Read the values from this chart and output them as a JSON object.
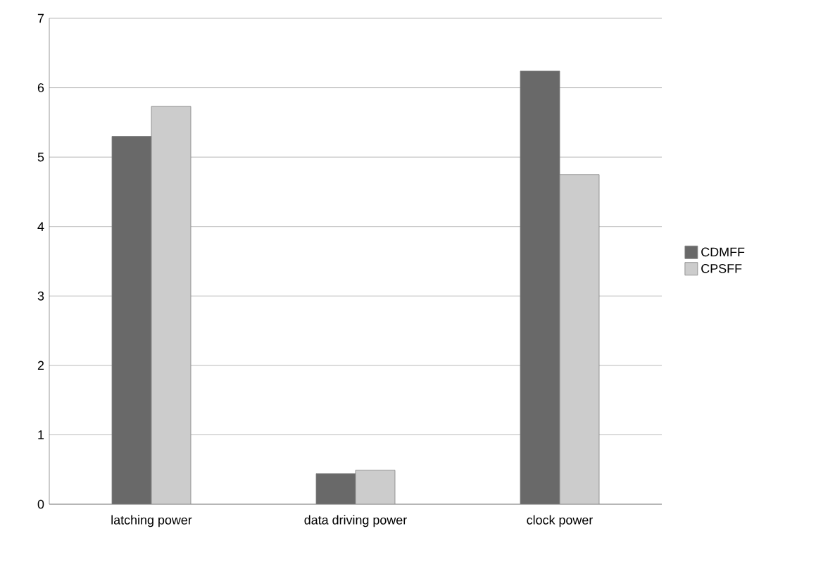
{
  "chart_data": {
    "type": "bar",
    "categories": [
      "latching power",
      "data driving power",
      "clock power"
    ],
    "series": [
      {
        "name": "CDMFF",
        "color": "#696969",
        "values": [
          5.3,
          0.44,
          6.24
        ]
      },
      {
        "name": "CPSFF",
        "color": "#cccccc",
        "values": [
          5.73,
          0.49,
          4.75
        ]
      }
    ],
    "ylim": [
      0,
      7
    ],
    "yticks": [
      0,
      1,
      2,
      3,
      4,
      5,
      6,
      7
    ],
    "grid": "y",
    "legend": "right"
  }
}
